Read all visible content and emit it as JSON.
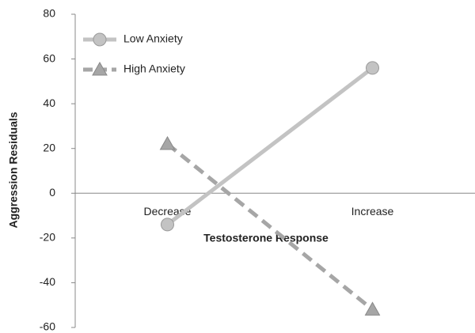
{
  "chart_data": {
    "type": "line",
    "xlabel": "Testosterone Response",
    "ylabel": "Aggression Residuals",
    "categories": [
      "Decrease",
      "Increase"
    ],
    "series": [
      {
        "name": "Low Anxiety",
        "color": "#c3c3c3",
        "marker": "circle",
        "dashed": false,
        "values": [
          -14,
          56
        ]
      },
      {
        "name": "High Anxiety",
        "color": "#a6a6a6",
        "marker": "triangle",
        "dashed": true,
        "values": [
          22,
          -52
        ]
      }
    ],
    "ylim": [
      -60,
      80
    ],
    "yticks": [
      -60,
      -40,
      -20,
      0,
      20,
      40,
      60,
      80
    ],
    "legend": "upper left",
    "grid": false
  }
}
